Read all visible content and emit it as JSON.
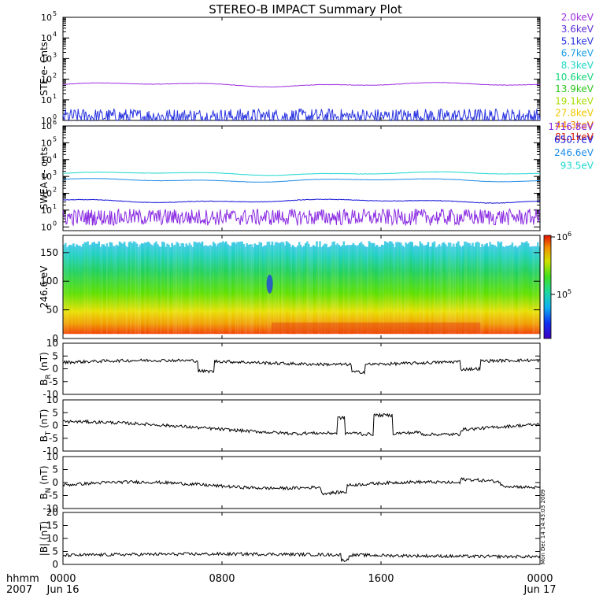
{
  "title": "STEREO-B IMPACT Summary Plot",
  "x_axis": {
    "row1_label": "hhmm",
    "row2_label": "2007",
    "ticks": [
      {
        "x": 0,
        "label": "0000",
        "sub": "Jun 16"
      },
      {
        "x": 8,
        "label": "0800",
        "sub": ""
      },
      {
        "x": 16,
        "label": "1600",
        "sub": ""
      },
      {
        "x": 24,
        "label": "0000",
        "sub": "Jun 17"
      }
    ]
  },
  "side_stamp": "Mon Dec 14 14:43:03 2009",
  "colors": {
    "ste_200": "#9d2fe0",
    "ste_360": "#5b2fd8",
    "ste_510": "#2a35e0",
    "ste_670": "#1e9fe6",
    "ste_830": "#1fd7c8",
    "ste_1060": "#14d67a",
    "ste_1390": "#2ec51e",
    "ste_1910": "#aade0c",
    "ste_2780": "#f0c800",
    "ste_4430": "#f08000",
    "ste_8110": "#d42010",
    "swea_1716": "#8a2be2",
    "swea_650": "#1414d8",
    "swea_246": "#1e8ce8",
    "swea_93": "#20d8d0"
  },
  "chart_data": [
    {
      "type": "line",
      "id": "ste",
      "ylabel": "STE e- Cnts",
      "yscale": "log",
      "ylim": [
        1,
        100000
      ],
      "yticks": [
        "10^0",
        "10^1",
        "10^2",
        "10^3",
        "10^4",
        "10^5"
      ],
      "legend": [
        {
          "label": "2.0keV",
          "color_key": "ste_200"
        },
        {
          "label": "3.6keV",
          "color_key": "ste_360"
        },
        {
          "label": "5.1keV",
          "color_key": "ste_510"
        },
        {
          "label": "6.7keV",
          "color_key": "ste_670"
        },
        {
          "label": "8.3keV",
          "color_key": "ste_830"
        },
        {
          "label": "10.6keV",
          "color_key": "ste_1060"
        },
        {
          "label": "13.9keV",
          "color_key": "ste_1390"
        },
        {
          "label": "19.1keV",
          "color_key": "ste_1910"
        },
        {
          "label": "27.8keV",
          "color_key": "ste_2780"
        },
        {
          "label": "44.3keV",
          "color_key": "ste_4430"
        },
        {
          "label": "81.1keV",
          "color_key": "ste_8110"
        }
      ],
      "series": [
        {
          "color_key": "ste_200",
          "level": 55,
          "noise": 0.05
        },
        {
          "color_key": "ste_510",
          "level": 1.3,
          "noise": 0.35
        }
      ]
    },
    {
      "type": "line",
      "id": "swea",
      "ylabel": "SWEA e- cnts",
      "yscale": "log",
      "ylim": [
        0.6,
        1000000
      ],
      "yticks": [
        "10^0",
        "10^1",
        "10^2",
        "10^3",
        "10^4",
        "10^5",
        "10^6"
      ],
      "legend": [
        {
          "label": "1716.8eV",
          "color_key": "swea_1716"
        },
        {
          "label": "650.7eV",
          "color_key": "swea_650"
        },
        {
          "label": "246.6eV",
          "color_key": "swea_246"
        },
        {
          "label": "93.5eV",
          "color_key": "swea_93"
        }
      ],
      "series": [
        {
          "color_key": "swea_93",
          "level": 1500,
          "noise": 0.05
        },
        {
          "color_key": "swea_246",
          "level": 600,
          "noise": 0.04
        },
        {
          "color_key": "swea_650",
          "level": 35,
          "noise": 0.08
        },
        {
          "color_key": "swea_1716",
          "level": 3,
          "noise": 0.45
        }
      ]
    },
    {
      "type": "heatmap",
      "id": "pad",
      "ylabel": "246.6 eV",
      "ylim": [
        0,
        180
      ],
      "yticks": [
        0,
        50,
        100,
        150
      ],
      "colorbar_ticks": [
        "10^5",
        "10^6"
      ]
    },
    {
      "type": "line",
      "id": "br",
      "ylabel": "BR (nT)",
      "ylabel_main": "B",
      "ylabel_sub": "R",
      "ylabel_unit": "(nT)",
      "ylim": [
        -10,
        10
      ],
      "yticks": [
        10,
        5,
        0,
        -5,
        -10
      ]
    },
    {
      "type": "line",
      "id": "bt",
      "ylabel": "BT (nT)",
      "ylabel_main": "B",
      "ylabel_sub": "T",
      "ylabel_unit": "(nT)",
      "ylim": [
        -10,
        10
      ],
      "yticks": [
        10,
        5,
        0,
        -5,
        -10
      ]
    },
    {
      "type": "line",
      "id": "bn",
      "ylabel": "BN (nT)",
      "ylabel_main": "B",
      "ylabel_sub": "N",
      "ylabel_unit": "(nT)",
      "ylim": [
        -10,
        10
      ],
      "yticks": [
        10,
        5,
        0,
        -5,
        -10
      ]
    },
    {
      "type": "line",
      "id": "bmag",
      "ylabel": "|B| (nT)",
      "ylim": [
        0,
        20
      ],
      "yticks": [
        20,
        15,
        10,
        5,
        0
      ]
    }
  ]
}
